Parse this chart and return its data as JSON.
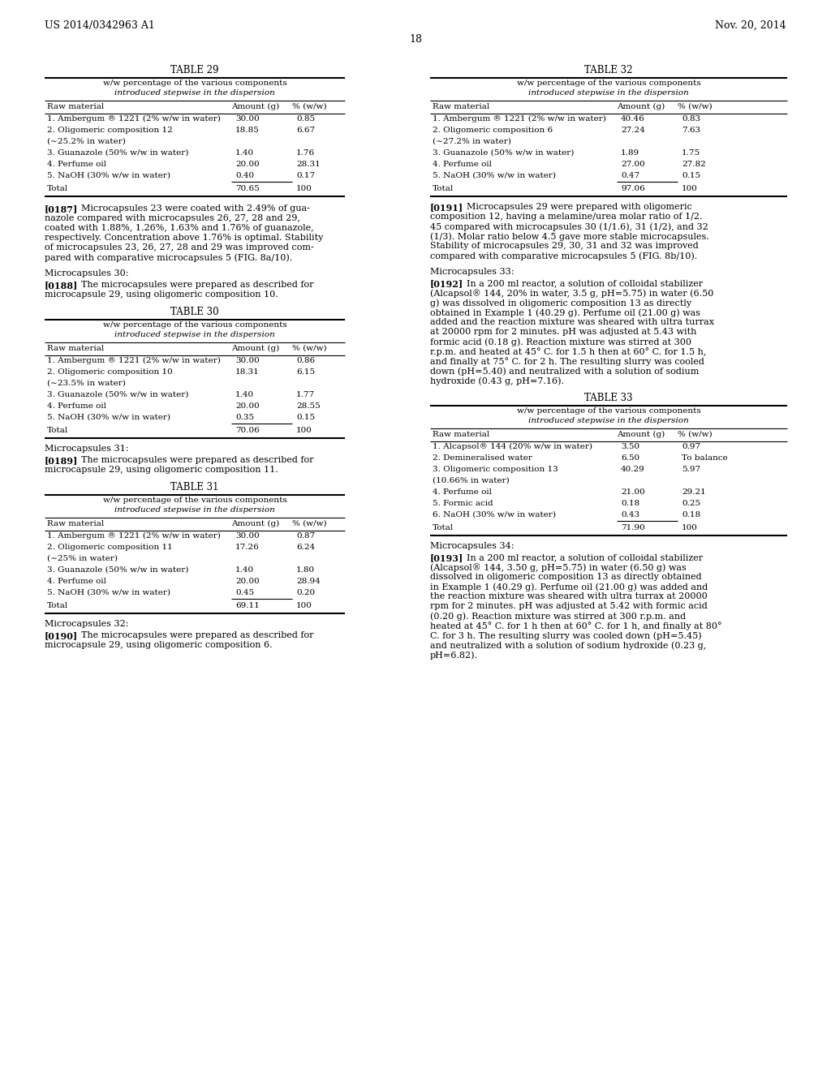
{
  "header_left": "US 2014/0342963 A1",
  "header_right": "Nov. 20, 2014",
  "page_number": "18",
  "background_color": "#ffffff",
  "text_color": "#000000",
  "table29_title": "TABLE 29",
  "table29_subtitle1": "w/w percentage of the various components",
  "table29_subtitle2": "introduced stepwise in the dispersion",
  "table29_col_headers": [
    "Raw material",
    "Amount (g)",
    "% (w/w)"
  ],
  "table29_rows": [
    [
      "1. Ambergum ® 1221 (2% w/w in water)",
      "30.00",
      "0.85"
    ],
    [
      "2. Oligomeric composition 12",
      "18.85",
      "6.67"
    ],
    [
      "(∼25.2% in water)",
      "",
      ""
    ],
    [
      "3. Guanazole (50% w/w in water)",
      "1.40",
      "1.76"
    ],
    [
      "4. Perfume oil",
      "20.00",
      "28.31"
    ],
    [
      "5. NaOH (30% w/w in water)",
      "0.40",
      "0.17"
    ]
  ],
  "table29_total": [
    "Total",
    "70.65",
    "100"
  ],
  "table30_title": "TABLE 30",
  "table30_subtitle1": "w/w percentage of the various components",
  "table30_subtitle2": "introduced stepwise in the dispersion",
  "table30_col_headers": [
    "Raw material",
    "Amount (g)",
    "% (w/w)"
  ],
  "table30_rows": [
    [
      "1. Ambergum ® 1221 (2% w/w in water)",
      "30.00",
      "0.86"
    ],
    [
      "2. Oligomeric composition 10",
      "18.31",
      "6.15"
    ],
    [
      "(∼23.5% in water)",
      "",
      ""
    ],
    [
      "3. Guanazole (50% w/w in water)",
      "1.40",
      "1.77"
    ],
    [
      "4. Perfume oil",
      "20.00",
      "28.55"
    ],
    [
      "5. NaOH (30% w/w in water)",
      "0.35",
      "0.15"
    ]
  ],
  "table30_total": [
    "Total",
    "70.06",
    "100"
  ],
  "table31_title": "TABLE 31",
  "table31_subtitle1": "w/w percentage of the various components",
  "table31_subtitle2": "introduced stepwise in the dispersion",
  "table31_col_headers": [
    "Raw material",
    "Amount (g)",
    "% (w/w)"
  ],
  "table31_rows": [
    [
      "1. Ambergum ® 1221 (2% w/w in water)",
      "30.00",
      "0.87"
    ],
    [
      "2. Oligomeric composition 11",
      "17.26",
      "6.24"
    ],
    [
      "(∼25% in water)",
      "",
      ""
    ],
    [
      "3. Guanazole (50% w/w in water)",
      "1.40",
      "1.80"
    ],
    [
      "4. Perfume oil",
      "20.00",
      "28.94"
    ],
    [
      "5. NaOH (30% w/w in water)",
      "0.45",
      "0.20"
    ]
  ],
  "table31_total": [
    "Total",
    "69.11",
    "100"
  ],
  "table32_title": "TABLE 32",
  "table32_subtitle1": "w/w percentage of the various components",
  "table32_subtitle2": "introduced stepwise in the dispersion",
  "table32_col_headers": [
    "Raw material",
    "Amount (g)",
    "% (w/w)"
  ],
  "table32_rows": [
    [
      "1. Ambergum ® 1221 (2% w/w in water)",
      "40.46",
      "0.83"
    ],
    [
      "2. Oligomeric composition 6",
      "27.24",
      "7.63"
    ],
    [
      "(∼27.2% in water)",
      "",
      ""
    ],
    [
      "3. Guanazole (50% w/w in water)",
      "1.89",
      "1.75"
    ],
    [
      "4. Perfume oil",
      "27.00",
      "27.82"
    ],
    [
      "5. NaOH (30% w/w in water)",
      "0.47",
      "0.15"
    ]
  ],
  "table32_total": [
    "Total",
    "97.06",
    "100"
  ],
  "table33_title": "TABLE 33",
  "table33_subtitle1": "w/w percentage of the various components",
  "table33_subtitle2": "introduced stepwise in the dispersion",
  "table33_col_headers": [
    "Raw material",
    "Amount (g)",
    "% (w/w)"
  ],
  "table33_rows": [
    [
      "1. Alcapsol® 144 (20% w/w in water)",
      "3.50",
      "0.97"
    ],
    [
      "2. Demineralised water",
      "6.50",
      "To balance"
    ],
    [
      "3. Oligomeric composition 13",
      "40.29",
      "5.97"
    ],
    [
      "(10.66% in water)",
      "",
      ""
    ],
    [
      "4. Perfume oil",
      "21.00",
      "29.21"
    ],
    [
      "5. Formic acid",
      "0.18",
      "0.25"
    ],
    [
      "6. NaOH (30% w/w in water)",
      "0.43",
      "0.18"
    ]
  ],
  "table33_total": [
    "Total",
    "71.90",
    "100"
  ],
  "para187": "[0187]   Microcapsules 23 were coated with 2.49% of gua-\nnazole compared with microcapsules 26, 27, 28 and 29,\ncoated with 1.88%, 1.26%, 1.63% and 1.76% of guanazole,\nrespectively. Concentration above 1.76% is optimal. Stability\nof microcapsules 23, 26, 27, 28 and 29 was improved com-\npared with comparative microcapsules 5 (FIG. 8a/10).",
  "microcap30_header": "Microcapsules 30:",
  "para188": "[0188]   The microcapsules were prepared as described for\nmicrocapsule 29, using oligomeric composition 10.",
  "microcap31_header": "Microcapsules 31:",
  "para189": "[0189]   The microcapsules were prepared as described for\nmicrocapsule 29, using oligomeric composition 11.",
  "microcap32_header": "Microcapsules 32:",
  "para190": "[0190]   The microcapsules were prepared as described for\nmicrocapsule 29, using oligomeric composition 6.",
  "para191": "[0191]   Microcapsules 29 were prepared with oligomeric\ncomposition 12, having a melamine/urea molar ratio of 1/2.\n45 compared with microcapsules 30 (1/1.6), 31 (1/2), and 32\n(1/3). Molar ratio below 4.5 gave more stable microcapsules.\nStability of microcapsules 29, 30, 31 and 32 was improved\ncompared with comparative microcapsules 5 (FIG. 8b/10).",
  "microcap33_header": "Microcapsules 33:",
  "para192": "[0192]   In a 200 ml reactor, a solution of colloidal stabilizer\n(Alcapsol® 144, 20% in water, 3.5 g, pH=5.75) in water (6.50\ng) was dissolved in oligomeric composition 13 as directly\nobtained in Example 1 (40.29 g). Perfume oil (21.00 g) was\nadded and the reaction mixture was sheared with ultra turrax\nat 20000 rpm for 2 minutes. pH was adjusted at 5.43 with\nformic acid (0.18 g). Reaction mixture was stirred at 300\nr.p.m. and heated at 45° C. for 1.5 h then at 60° C. for 1.5 h,\nand finally at 75° C. for 2 h. The resulting slurry was cooled\ndown (pH=5.40) and neutralized with a solution of sodium\nhydroxide (0.43 g, pH=7.16).",
  "microcap34_header": "Microcapsules 34:",
  "para193": "[0193]   In a 200 ml reactor, a solution of colloidal stabilizer\n(Alcapsol® 144, 3.50 g, pH=5.75) in water (6.50 g) was\ndissolved in oligomeric composition 13 as directly obtained\nin Example 1 (40.29 g). Perfume oil (21.00 g) was added and\nthe reaction mixture was sheared with ultra turrax at 20000\nrpm for 2 minutes. pH was adjusted at 5.42 with formic acid\n(0.20 g). Reaction mixture was stirred at 300 r.p.m. and\nheated at 45° C. for 1 h then at 60° C. for 1 h, and finally at 80°\nC. for 3 h. The resulting slurry was cooled down (pH=5.45)\nand neutralized with a solution of sodium hydroxide (0.23 g,\npH=6.82)."
}
